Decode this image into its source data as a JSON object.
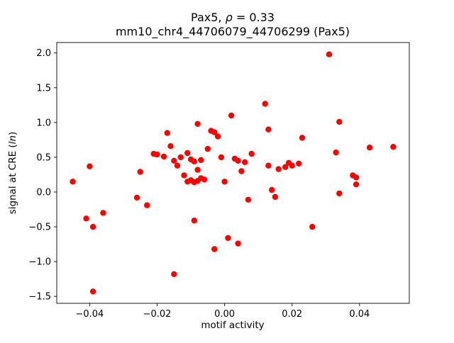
{
  "chart_data": {
    "type": "scatter",
    "title": "Pax5, ρ = 0.33",
    "title_parts": {
      "prefix": "Pax5, ",
      "rho": "ρ",
      "suffix": " = 0.33"
    },
    "subtitle": "mm10_chr4_44706079_44706299 (Pax5)",
    "xlabel": "motif activity",
    "ylabel": "signal at CRE (ln)",
    "ylabel_parts": {
      "prefix": "signal at CRE (",
      "italic": "ln",
      "suffix": ")"
    },
    "xlim": [
      -0.04975,
      0.05475
    ],
    "ylim": [
      -1.6,
      2.15
    ],
    "x_ticks": [
      -0.04,
      -0.02,
      0.0,
      0.02,
      0.04
    ],
    "y_ticks": [
      -1.5,
      -1.0,
      -0.5,
      0.0,
      0.5,
      1.0,
      1.5,
      2.0
    ],
    "grid": false,
    "legend": "none",
    "marker_color": "#ff0000",
    "marker_radius": 4.2,
    "points": [
      [
        -0.045,
        0.15
      ],
      [
        -0.041,
        -0.38
      ],
      [
        -0.04,
        0.37
      ],
      [
        -0.039,
        -0.5
      ],
      [
        -0.039,
        -1.43
      ],
      [
        -0.036,
        -0.3
      ],
      [
        -0.026,
        -0.08
      ],
      [
        -0.025,
        0.29
      ],
      [
        -0.023,
        -0.19
      ],
      [
        -0.021,
        0.55
      ],
      [
        -0.02,
        0.54
      ],
      [
        -0.018,
        0.51
      ],
      [
        -0.017,
        0.85
      ],
      [
        -0.016,
        0.66
      ],
      [
        -0.015,
        0.45
      ],
      [
        -0.015,
        -1.18
      ],
      [
        -0.014,
        0.38
      ],
      [
        -0.013,
        0.5
      ],
      [
        -0.012,
        0.24
      ],
      [
        -0.011,
        0.56
      ],
      [
        -0.011,
        0.15
      ],
      [
        -0.01,
        0.47
      ],
      [
        -0.01,
        0.17
      ],
      [
        -0.009,
        0.44
      ],
      [
        -0.009,
        0.14
      ],
      [
        -0.009,
        -0.41
      ],
      [
        -0.008,
        0.98
      ],
      [
        -0.008,
        0.32
      ],
      [
        -0.008,
        0.16
      ],
      [
        -0.007,
        0.46
      ],
      [
        -0.007,
        0.2
      ],
      [
        -0.006,
        0.18
      ],
      [
        -0.005,
        0.62
      ],
      [
        -0.004,
        0.88
      ],
      [
        -0.003,
        0.86
      ],
      [
        -0.003,
        -0.82
      ],
      [
        -0.002,
        0.8
      ],
      [
        -0.001,
        0.5
      ],
      [
        0.0,
        0.15
      ],
      [
        0.001,
        -0.66
      ],
      [
        0.002,
        1.1
      ],
      [
        0.003,
        0.48
      ],
      [
        0.004,
        0.45
      ],
      [
        0.004,
        -0.74
      ],
      [
        0.005,
        0.3
      ],
      [
        0.006,
        0.43
      ],
      [
        0.007,
        -0.11
      ],
      [
        0.008,
        0.55
      ],
      [
        0.012,
        1.27
      ],
      [
        0.013,
        0.38
      ],
      [
        0.013,
        0.9
      ],
      [
        0.014,
        0.03
      ],
      [
        0.015,
        -0.07
      ],
      [
        0.016,
        0.33
      ],
      [
        0.018,
        0.36
      ],
      [
        0.019,
        0.42
      ],
      [
        0.02,
        0.38
      ],
      [
        0.022,
        0.41
      ],
      [
        0.023,
        0.78
      ],
      [
        0.026,
        -0.5
      ],
      [
        0.031,
        1.98
      ],
      [
        0.033,
        0.57
      ],
      [
        0.034,
        1.01
      ],
      [
        0.034,
        -0.02
      ],
      [
        0.038,
        0.24
      ],
      [
        0.039,
        0.21
      ],
      [
        0.039,
        0.11
      ],
      [
        0.043,
        0.64
      ],
      [
        0.05,
        0.65
      ]
    ]
  }
}
